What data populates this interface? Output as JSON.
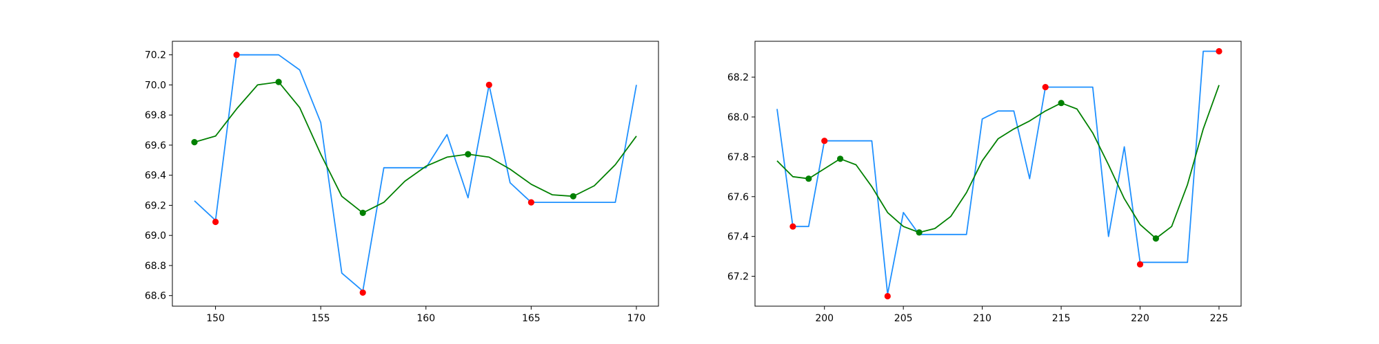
{
  "colors": {
    "raw_line": "#1e90ff",
    "smooth_line": "#008000",
    "raw_marker": "#ff0000",
    "smooth_marker": "#008000",
    "axes": "#000000",
    "background": "#ffffff"
  },
  "chart_data": [
    {
      "type": "line",
      "title": "",
      "xlabel": "",
      "ylabel": "",
      "grid": false,
      "xlim": [
        147.95,
        171.05
      ],
      "ylim": [
        68.53,
        70.29
      ],
      "xticks": [
        150,
        155,
        160,
        165,
        170
      ],
      "yticks": [
        68.6,
        68.8,
        69.0,
        69.2,
        69.4,
        69.6,
        69.8,
        70.0,
        70.2
      ],
      "series": [
        {
          "role": "raw",
          "x": [
            149,
            150,
            151,
            152,
            153,
            154,
            155,
            156,
            157,
            158,
            159,
            160,
            161,
            162,
            163,
            164,
            165,
            166,
            167,
            168,
            169,
            170
          ],
          "y": [
            69.23,
            69.1,
            70.2,
            70.2,
            70.2,
            70.1,
            69.75,
            68.75,
            68.63,
            69.45,
            69.45,
            69.45,
            69.67,
            69.25,
            70.0,
            69.35,
            69.22,
            69.22,
            69.22,
            69.22,
            69.22,
            70.0
          ]
        },
        {
          "role": "smoothed",
          "x": [
            149,
            150,
            151,
            152,
            153,
            154,
            155,
            156,
            157,
            158,
            159,
            160,
            161,
            162,
            163,
            164,
            165,
            166,
            167,
            168,
            169,
            170
          ],
          "y": [
            69.62,
            69.66,
            69.84,
            70.0,
            70.02,
            69.85,
            69.54,
            69.26,
            69.15,
            69.22,
            69.36,
            69.46,
            69.52,
            69.54,
            69.52,
            69.44,
            69.34,
            69.27,
            69.26,
            69.33,
            69.47,
            69.66
          ]
        },
        {
          "role": "raw-extrema",
          "x": [
            150,
            151,
            157,
            163,
            165
          ],
          "y": [
            69.09,
            70.2,
            68.62,
            70.0,
            69.22
          ]
        },
        {
          "role": "smoothed-extrema",
          "x": [
            149,
            153,
            157,
            162,
            167
          ],
          "y": [
            69.62,
            70.02,
            69.15,
            69.54,
            69.26
          ]
        }
      ]
    },
    {
      "type": "line",
      "title": "",
      "xlabel": "",
      "ylabel": "",
      "grid": false,
      "xlim": [
        195.6,
        226.4
      ],
      "ylim": [
        67.05,
        68.38
      ],
      "xticks": [
        200,
        205,
        210,
        215,
        220,
        225
      ],
      "yticks": [
        67.2,
        67.4,
        67.6,
        67.8,
        68.0,
        68.2
      ],
      "series": [
        {
          "role": "raw",
          "x": [
            197,
            198,
            199,
            200,
            201,
            202,
            203,
            204,
            205,
            206,
            207,
            208,
            209,
            210,
            211,
            212,
            213,
            214,
            215,
            216,
            217,
            218,
            219,
            220,
            221,
            222,
            223,
            224,
            225
          ],
          "y": [
            68.04,
            67.45,
            67.45,
            67.88,
            67.88,
            67.88,
            67.88,
            67.11,
            67.52,
            67.41,
            67.41,
            67.41,
            67.41,
            67.99,
            68.03,
            68.03,
            67.69,
            68.15,
            68.15,
            68.15,
            68.15,
            67.4,
            67.85,
            67.27,
            67.27,
            67.27,
            67.27,
            68.33,
            68.33
          ]
        },
        {
          "role": "smoothed",
          "x": [
            197,
            198,
            199,
            200,
            201,
            202,
            203,
            204,
            205,
            206,
            207,
            208,
            209,
            210,
            211,
            212,
            213,
            214,
            215,
            216,
            217,
            218,
            219,
            220,
            221,
            222,
            223,
            224,
            225
          ],
          "y": [
            67.78,
            67.7,
            67.69,
            67.74,
            67.79,
            67.76,
            67.65,
            67.52,
            67.45,
            67.42,
            67.44,
            67.5,
            67.62,
            67.78,
            67.89,
            67.94,
            67.98,
            68.03,
            68.07,
            68.04,
            67.92,
            67.76,
            67.59,
            67.46,
            67.39,
            67.45,
            67.66,
            67.94,
            68.16
          ]
        },
        {
          "role": "raw-extrema",
          "x": [
            198,
            200,
            204,
            214,
            220,
            225
          ],
          "y": [
            67.45,
            67.88,
            67.1,
            68.15,
            67.26,
            68.33
          ]
        },
        {
          "role": "smoothed-extrema",
          "x": [
            199,
            201,
            206,
            215,
            221
          ],
          "y": [
            67.69,
            67.79,
            67.42,
            68.07,
            67.39
          ]
        }
      ]
    }
  ]
}
